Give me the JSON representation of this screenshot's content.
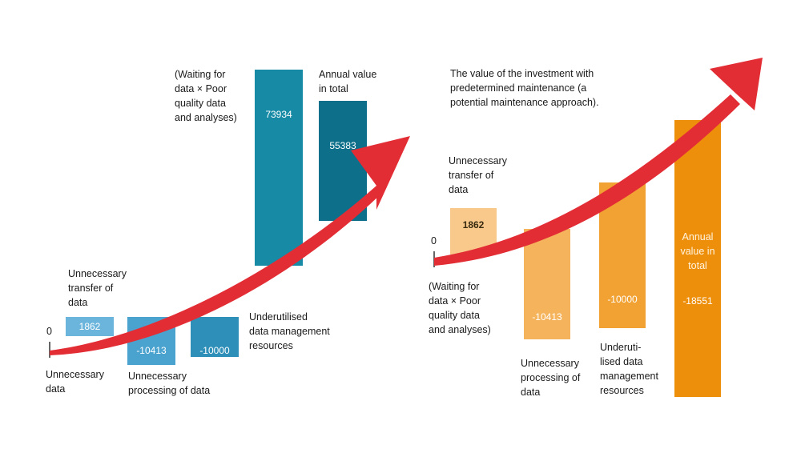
{
  "chart_data": [
    {
      "type": "bar",
      "baseline_label": "0",
      "categories": [
        "Unnecessary data",
        "Unnecessary transfer of data",
        "Unnecessary processing of data",
        "Underutilised data management resources",
        "(Waiting for data × Poor quality data and analyses)",
        "Annual value in total"
      ],
      "values": [
        null,
        1862,
        -10413,
        -10000,
        73934,
        55383
      ],
      "value_labels": [
        "",
        "1862",
        "-10413",
        "-10000",
        "73934",
        "55383"
      ],
      "labels": [
        [
          "Unnecessary",
          "data"
        ],
        [
          "Unnecessary",
          "transfer of",
          "data"
        ],
        [
          "Unnecessary",
          "processing of data"
        ],
        [
          "Underutilised",
          "data management",
          "resources"
        ],
        [
          "(Waiting for",
          "data × Poor",
          "quality data",
          "and analyses)"
        ],
        [
          "Annual value",
          "in total"
        ]
      ],
      "colors": [
        "#6bb5dc",
        "#6bb5dc",
        "#4aa2cf",
        "#2e8fb8",
        "#178aa5",
        "#0d6f8a"
      ]
    },
    {
      "type": "bar",
      "baseline_label": "0",
      "title": [
        "The value of the investment with",
        "predetermined maintenance (a",
        "potential maintenance approach)."
      ],
      "categories": [
        "Unnecessary transfer of data",
        "(Waiting for data × Poor quality data and analyses)",
        "Unnecessary processing of data",
        "Underutilised data management resources",
        "Annual value in total"
      ],
      "values": [
        1862,
        null,
        -10413,
        -10000,
        -18551
      ],
      "value_labels": [
        "1862",
        "",
        "-10413",
        "-10000",
        "-18551"
      ],
      "labels": [
        [
          "Unnecessary",
          "transfer of",
          "data"
        ],
        [
          "(Waiting for",
          "data × Poor",
          "quality data",
          "and analyses)"
        ],
        [
          "Unnecessary",
          "processing of",
          "data"
        ],
        [
          "Underuti-",
          "lised data",
          "management",
          "resources"
        ],
        [
          "Annual",
          "value in",
          "total"
        ]
      ],
      "colors": [
        "#f8c98a",
        "#f8c98a",
        "#f5b45c",
        "#f2a232",
        "#ee8f0c"
      ]
    }
  ],
  "arrow_color": "#e32d35"
}
